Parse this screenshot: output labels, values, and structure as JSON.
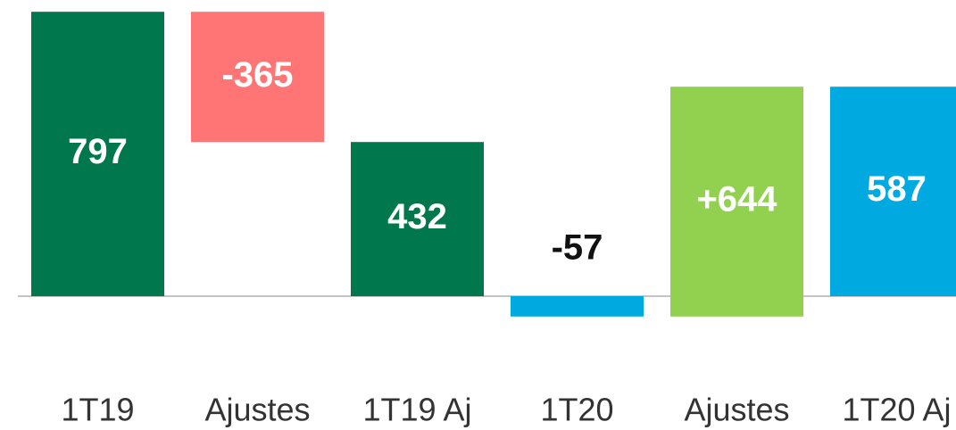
{
  "chart_data": {
    "type": "waterfall",
    "categories": [
      "1T19",
      "Ajustes",
      "1T19 Aj",
      "1T20",
      "Ajustes",
      "1T20 Aj"
    ],
    "values": [
      797,
      -365,
      432,
      -57,
      644,
      587
    ],
    "value_labels": [
      "797",
      "-365",
      "432",
      "-57",
      "+644",
      "587"
    ],
    "measures": [
      "absolute",
      "relative",
      "absolute",
      "absolute",
      "relative",
      "absolute"
    ],
    "colors": [
      "#00774d",
      "#ff7575",
      "#00774d",
      "#00a9e0",
      "#92d050",
      "#00a9e0"
    ],
    "ylim": [
      -150,
      830
    ]
  }
}
